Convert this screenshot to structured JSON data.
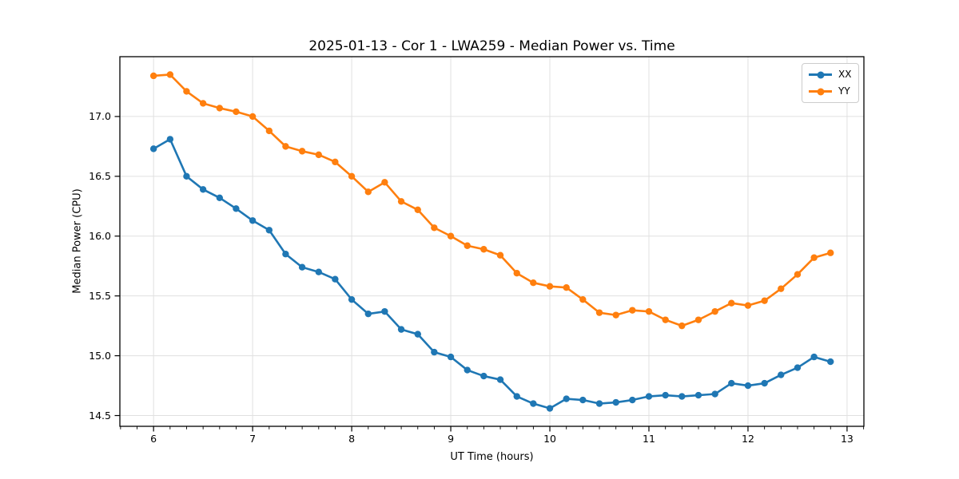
{
  "figure": {
    "background": "#ffffff"
  },
  "chart_data": {
    "type": "line",
    "title": "2025-01-13 - Cor 1 - LWA259 - Median Power vs. Time",
    "xlabel": "UT Time (hours)",
    "ylabel": "Median Power (CPU)",
    "xlim": [
      5.66,
      13.17
    ],
    "ylim": [
      14.41,
      17.5
    ],
    "xticks": [
      6,
      7,
      8,
      9,
      10,
      11,
      12,
      13
    ],
    "yticks": [
      14.5,
      15.0,
      15.5,
      16.0,
      16.5,
      17.0
    ],
    "minor_xtick_step": 0.16667,
    "grid": true,
    "grid_color": "#e0e0e0",
    "spine_color": "#000000",
    "legend_position": "upper right",
    "x": [
      6.0,
      6.167,
      6.333,
      6.5,
      6.667,
      6.833,
      7.0,
      7.167,
      7.333,
      7.5,
      7.667,
      7.833,
      8.0,
      8.167,
      8.333,
      8.5,
      8.667,
      8.833,
      9.0,
      9.167,
      9.333,
      9.5,
      9.667,
      9.833,
      10.0,
      10.167,
      10.333,
      10.5,
      10.667,
      10.833,
      11.0,
      11.167,
      11.333,
      11.5,
      11.667,
      11.833,
      12.0,
      12.167,
      12.333,
      12.5,
      12.667,
      12.833
    ],
    "series": [
      {
        "name": "XX",
        "color": "#1f77b4",
        "marker": "circle",
        "values": [
          16.73,
          16.81,
          16.5,
          16.39,
          16.32,
          16.23,
          16.13,
          16.05,
          15.85,
          15.74,
          15.7,
          15.64,
          15.47,
          15.35,
          15.37,
          15.22,
          15.18,
          15.03,
          14.99,
          14.88,
          14.83,
          14.8,
          14.66,
          14.6,
          14.56,
          14.64,
          14.63,
          14.6,
          14.61,
          14.63,
          14.66,
          14.67,
          14.66,
          14.67,
          14.68,
          14.77,
          14.75,
          14.77,
          14.84,
          14.9,
          14.99,
          14.95
        ]
      },
      {
        "name": "YY",
        "color": "#ff7f0e",
        "marker": "circle",
        "values": [
          17.34,
          17.35,
          17.21,
          17.11,
          17.07,
          17.04,
          17.0,
          16.88,
          16.75,
          16.71,
          16.68,
          16.62,
          16.5,
          16.37,
          16.45,
          16.29,
          16.22,
          16.07,
          16.0,
          15.92,
          15.89,
          15.84,
          15.69,
          15.61,
          15.58,
          15.57,
          15.47,
          15.36,
          15.34,
          15.38,
          15.37,
          15.3,
          15.25,
          15.3,
          15.37,
          15.44,
          15.42,
          15.46,
          15.56,
          15.68,
          15.82,
          15.86
        ]
      }
    ]
  }
}
